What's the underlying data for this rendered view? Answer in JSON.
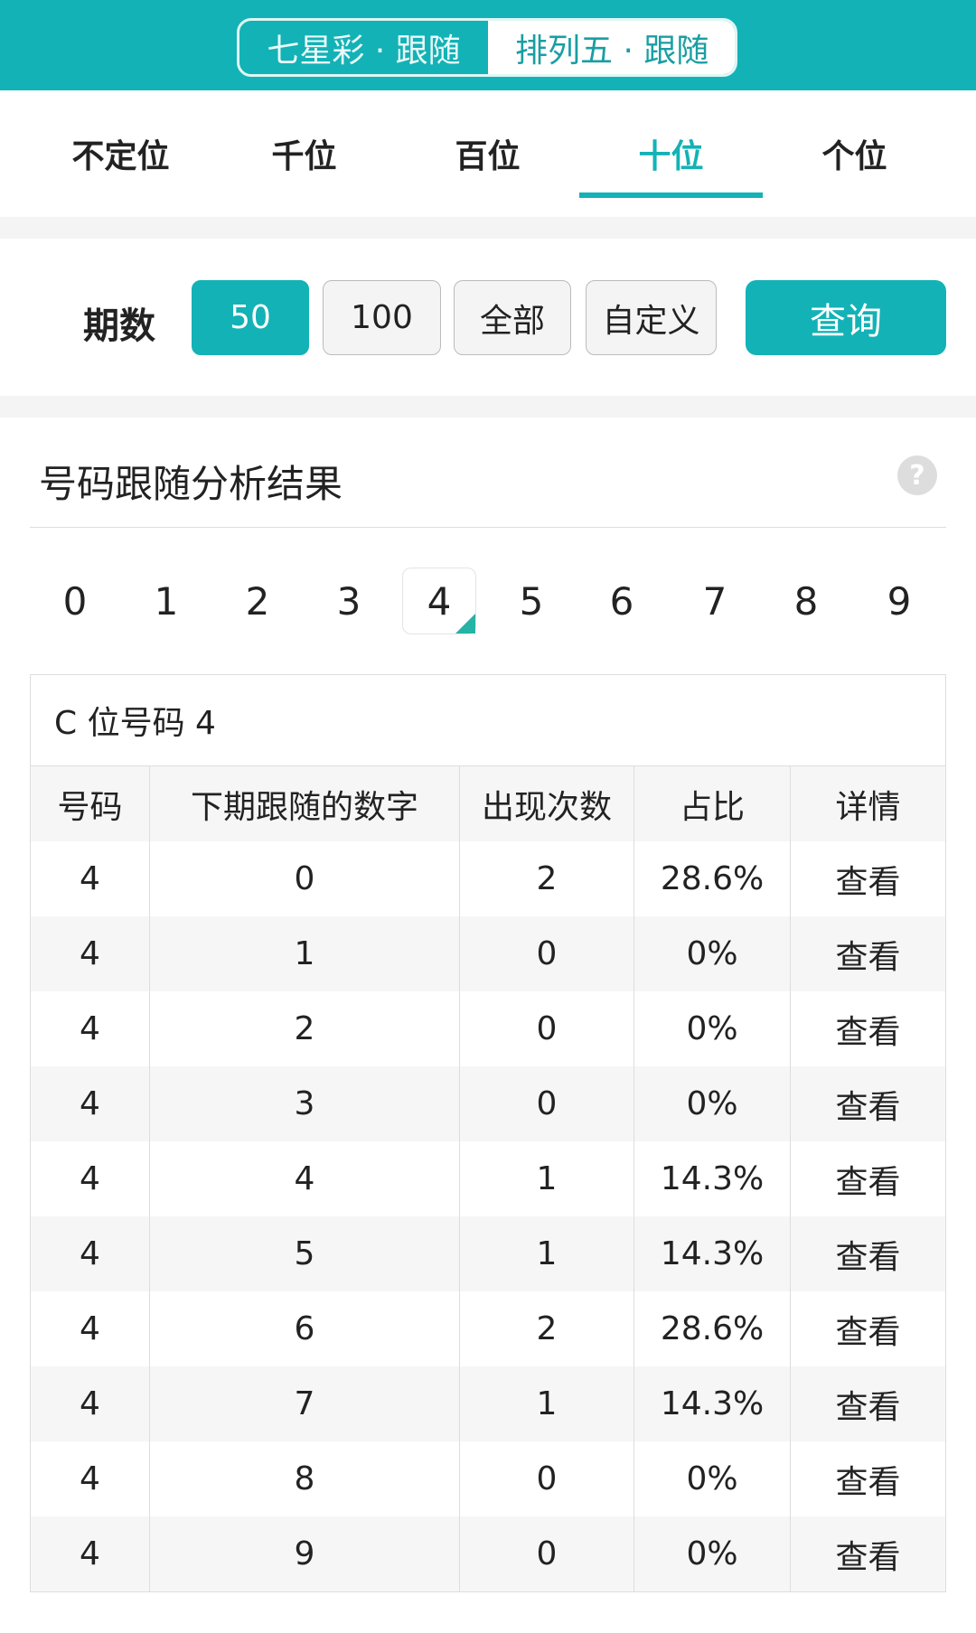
{
  "header": {
    "toggle": [
      "七星彩 · 跟随",
      "排列五 · 跟随"
    ],
    "active_toggle": 1
  },
  "tabs": [
    "不定位",
    "千位",
    "百位",
    "十位",
    "个位"
  ],
  "active_tab": 3,
  "period": {
    "label": "期数",
    "options": [
      "50",
      "100",
      "全部",
      "自定义"
    ],
    "active": 0,
    "query_label": "查询"
  },
  "result": {
    "title": "号码跟随分析结果",
    "help_icon": "question-circle-icon"
  },
  "digits": [
    "0",
    "1",
    "2",
    "3",
    "4",
    "5",
    "6",
    "7",
    "8",
    "9"
  ],
  "active_digit": 4,
  "table": {
    "caption": "C 位号码 4",
    "headers": [
      "号码",
      "下期跟随的数字",
      "出现次数",
      "占比",
      "详情"
    ],
    "rows": [
      [
        "4",
        "0",
        "2",
        "28.6%",
        "查看"
      ],
      [
        "4",
        "1",
        "0",
        "0%",
        "查看"
      ],
      [
        "4",
        "2",
        "0",
        "0%",
        "查看"
      ],
      [
        "4",
        "3",
        "0",
        "0%",
        "查看"
      ],
      [
        "4",
        "4",
        "1",
        "14.3%",
        "查看"
      ],
      [
        "4",
        "5",
        "1",
        "14.3%",
        "查看"
      ],
      [
        "4",
        "6",
        "2",
        "28.6%",
        "查看"
      ],
      [
        "4",
        "7",
        "1",
        "14.3%",
        "查看"
      ],
      [
        "4",
        "8",
        "0",
        "0%",
        "查看"
      ],
      [
        "4",
        "9",
        "0",
        "0%",
        "查看"
      ]
    ]
  },
  "colors": {
    "accent": "#13b2b6"
  }
}
